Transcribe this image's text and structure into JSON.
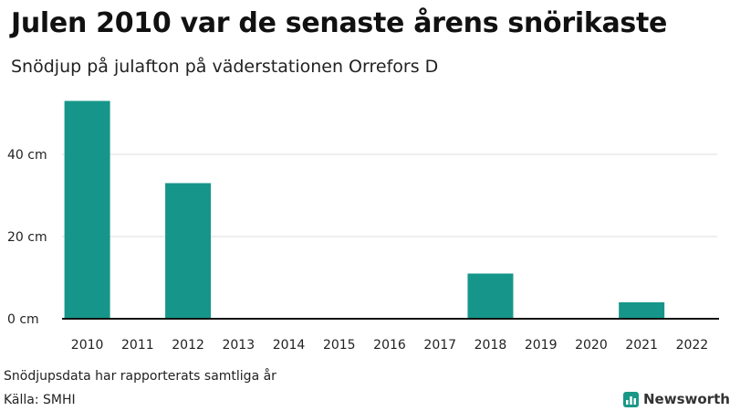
{
  "title": "Julen 2010 var de senaste årens snörikaste",
  "subtitle": "Snödjup på julafton på väderstationen Orrefors D",
  "footnote": "Snödjupsdata har rapporterats samtliga år",
  "source": "Källa: SMHI",
  "brand": {
    "name": "Newsworthy",
    "icon": "newsworthy-chart-icon",
    "color": "#1a9887"
  },
  "chart_data": {
    "type": "bar",
    "categories": [
      "2010",
      "2011",
      "2012",
      "2013",
      "2014",
      "2015",
      "2016",
      "2017",
      "2018",
      "2019",
      "2020",
      "2021",
      "2022"
    ],
    "values": [
      53,
      0,
      33,
      0,
      0,
      0,
      0,
      0,
      11,
      0,
      0,
      4,
      0
    ],
    "unit": "cm",
    "yticks": [
      0,
      20,
      40
    ],
    "ytick_labels": [
      "0 cm",
      "20 cm",
      "40 cm"
    ],
    "ylim": [
      0,
      60
    ],
    "grid": true,
    "bar_color": "#16968a"
  }
}
